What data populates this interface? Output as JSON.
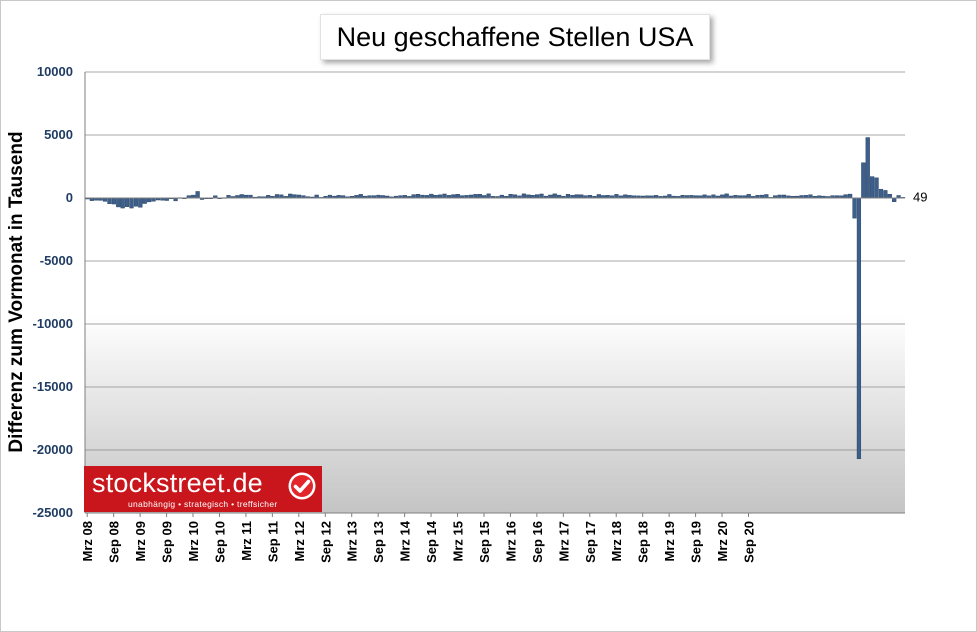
{
  "chart_data": {
    "type": "bar",
    "title": "Neu geschaffene Stellen USA",
    "ylabel": "Differenz zum Vormonat in Tausend",
    "xlabel": "",
    "ylim": [
      -25000,
      10000
    ],
    "yticks": [
      10000,
      5000,
      0,
      -5000,
      -10000,
      -15000,
      -20000,
      -25000
    ],
    "grid": true,
    "start_month": "2008-03",
    "xtick_labels": [
      "Mrz 08",
      "Sep 08",
      "Mrz 09",
      "Sep 09",
      "Mrz 10",
      "Sep 10",
      "Mrz 11",
      "Sep 11",
      "Mrz 12",
      "Sep 12",
      "Mrz 13",
      "Sep 13",
      "Mrz 14",
      "Sep 14",
      "Mrz 15",
      "Sep 15",
      "Mrz 16",
      "Sep 16",
      "Mrz 17",
      "Sep 17",
      "Mrz 18",
      "Sep 18",
      "Mrz 19",
      "Sep 19",
      "Mrz 20",
      "Sep 20"
    ],
    "values": [
      -80,
      -210,
      -180,
      -190,
      -270,
      -460,
      -480,
      -710,
      -800,
      -690,
      -800,
      -660,
      -740,
      -440,
      -310,
      -260,
      -160,
      -180,
      -200,
      -20,
      -230,
      30,
      -30,
      190,
      230,
      520,
      -120,
      -60,
      -30,
      180,
      -50,
      30,
      210,
      120,
      200,
      280,
      230,
      230,
      70,
      110,
      100,
      210,
      140,
      280,
      250,
      130,
      320,
      270,
      240,
      190,
      110,
      80,
      240,
      50,
      140,
      230,
      150,
      210,
      190,
      100,
      140,
      210,
      290,
      150,
      190,
      190,
      230,
      200,
      160,
      90,
      150,
      190,
      210,
      130,
      270,
      300,
      230,
      210,
      310,
      220,
      250,
      320,
      210,
      270,
      300,
      190,
      210,
      240,
      290,
      300,
      200,
      330,
      130,
      120,
      230,
      140,
      300,
      260,
      170,
      330,
      250,
      220,
      270,
      320,
      150,
      240,
      330,
      230,
      140,
      300,
      220,
      270,
      260,
      190,
      220,
      140,
      280,
      200,
      220,
      180,
      290,
      170,
      260,
      210,
      180,
      170,
      160,
      180,
      170,
      210,
      130,
      160,
      280,
      150,
      130,
      220,
      200,
      210,
      190,
      180,
      250,
      170,
      250,
      160,
      250,
      330,
      160,
      220,
      190,
      190,
      290,
      130,
      220,
      230,
      280,
      50,
      190,
      240,
      240,
      170,
      140,
      150,
      200,
      210,
      260,
      140,
      180,
      150,
      120,
      190,
      190,
      180,
      270,
      310,
      -1600,
      -20700,
      2800,
      4800,
      1700,
      1600,
      700,
      600,
      300,
      -300,
      200,
      49
    ],
    "annotations": [
      {
        "text": "49"
      }
    ],
    "colors": {
      "bar": "#3e5f8a",
      "bar_edge": "#1f3a5e",
      "axis_tick_label": "#1f3c64"
    }
  },
  "brand": {
    "name": "stockstreet.de",
    "slogan": "unabhängig • strategisch • treffsicher",
    "color": "#c8161c",
    "icon": "check-icon"
  }
}
